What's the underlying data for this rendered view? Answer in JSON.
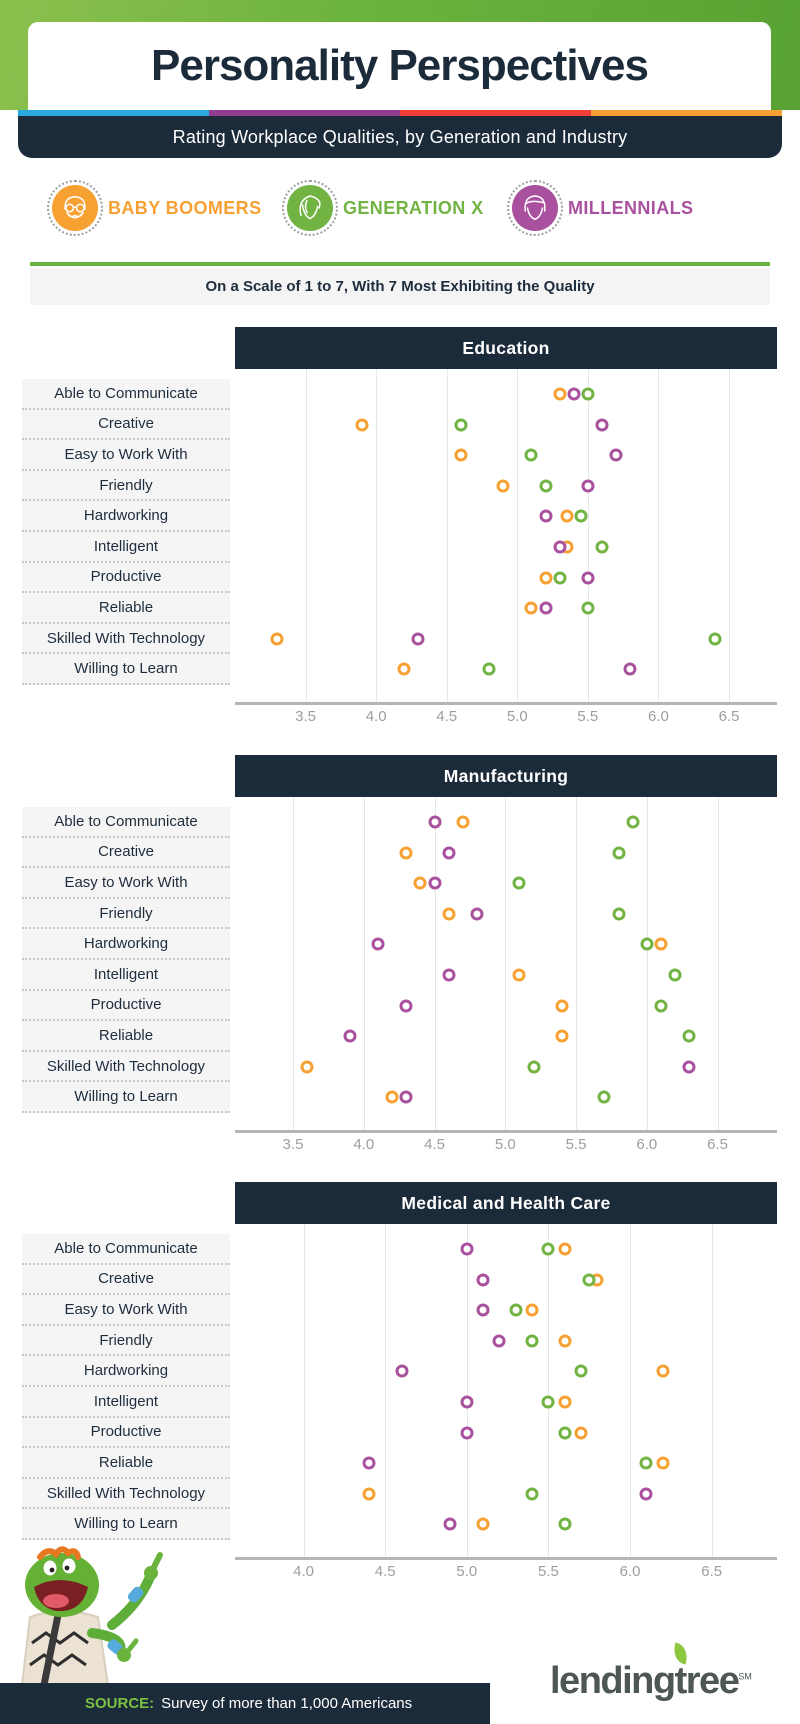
{
  "header": {
    "title": "Personality Perspectives",
    "subtitle": "Rating Workplace Qualities, by Generation and Industry"
  },
  "stripe_colors": [
    "#29abe2",
    "#8e3d90",
    "#ee4036",
    "#f7a133"
  ],
  "brand_colors": {
    "navy": "#1c2b3a",
    "green": "#6cb33f"
  },
  "legend": [
    {
      "label": "BABY BOOMERS",
      "color": "#F7A133",
      "icon": "older-man-avatar"
    },
    {
      "label": "GENERATION X",
      "color": "#72B444",
      "icon": "woman-avatar"
    },
    {
      "label": "MILLENNIALS",
      "color": "#A9519F",
      "icon": "young-man-avatar"
    }
  ],
  "scale_note": "On a Scale of 1 to 7, With 7 Most Exhibiting the Quality",
  "chart_data": [
    {
      "type": "scatter",
      "title": "Education",
      "categories": [
        "Able to Communicate",
        "Creative",
        "Easy to Work With",
        "Friendly",
        "Hardworking",
        "Intelligent",
        "Productive",
        "Reliable",
        "Skilled With Technology",
        "Willing to Learn"
      ],
      "ticks": [
        "3.5",
        "4.0",
        "4.5",
        "5.0",
        "5.5",
        "6.0",
        "6.5"
      ],
      "xlim": [
        3.0,
        6.84
      ],
      "series": [
        {
          "name": "Baby Boomers",
          "color": "#F7A133",
          "values": [
            5.3,
            3.9,
            4.6,
            4.9,
            5.35,
            5.35,
            5.2,
            5.1,
            3.3,
            4.2
          ]
        },
        {
          "name": "Generation X",
          "color": "#72B444",
          "values": [
            5.5,
            4.6,
            5.1,
            5.2,
            5.45,
            5.6,
            5.3,
            5.5,
            6.4,
            4.8
          ]
        },
        {
          "name": "Millennials",
          "color": "#A9519F",
          "values": [
            5.4,
            5.6,
            5.7,
            5.5,
            5.2,
            5.3,
            5.5,
            5.2,
            4.3,
            5.8
          ]
        }
      ]
    },
    {
      "type": "scatter",
      "title": "Manufacturing",
      "categories": [
        "Able to Communicate",
        "Creative",
        "Easy to Work With",
        "Friendly",
        "Hardworking",
        "Intelligent",
        "Productive",
        "Reliable",
        "Skilled With Technology",
        "Willing to Learn"
      ],
      "ticks": [
        "3.5",
        "4.0",
        "4.5",
        "5.0",
        "5.5",
        "6.0",
        "6.5"
      ],
      "xlim": [
        3.09,
        6.92
      ],
      "series": [
        {
          "name": "Baby Boomers",
          "color": "#F7A133",
          "values": [
            4.7,
            4.3,
            4.4,
            4.6,
            6.1,
            5.1,
            5.4,
            5.4,
            3.6,
            4.2
          ]
        },
        {
          "name": "Generation X",
          "color": "#72B444",
          "values": [
            5.9,
            5.8,
            5.1,
            5.8,
            6.0,
            6.2,
            6.1,
            6.3,
            5.2,
            5.7
          ]
        },
        {
          "name": "Millennials",
          "color": "#A9519F",
          "values": [
            4.5,
            4.6,
            4.5,
            4.8,
            4.1,
            4.6,
            4.3,
            3.9,
            6.3,
            4.3
          ]
        }
      ]
    },
    {
      "type": "scatter",
      "title": "Medical and Health Care",
      "categories": [
        "Able to Communicate",
        "Creative",
        "Easy to Work With",
        "Friendly",
        "Hardworking",
        "Intelligent",
        "Productive",
        "Reliable",
        "Skilled With Technology",
        "Willing to Learn"
      ],
      "ticks": [
        "4.0",
        "4.5",
        "5.0",
        "5.5",
        "6.0",
        "6.5"
      ],
      "xlim": [
        3.58,
        6.9
      ],
      "series": [
        {
          "name": "Baby Boomers",
          "color": "#F7A133",
          "values": [
            5.6,
            5.8,
            5.4,
            5.6,
            6.2,
            5.6,
            5.7,
            6.2,
            4.4,
            5.1
          ]
        },
        {
          "name": "Generation X",
          "color": "#72B444",
          "values": [
            5.5,
            5.75,
            5.3,
            5.4,
            5.7,
            5.5,
            5.6,
            6.1,
            5.4,
            5.6
          ]
        },
        {
          "name": "Millennials",
          "color": "#A9519F",
          "values": [
            5.0,
            5.1,
            5.1,
            5.2,
            4.6,
            5.0,
            5.0,
            4.4,
            6.1,
            4.9
          ]
        }
      ]
    }
  ],
  "footer": {
    "source_label": "SOURCE:",
    "source_text": "Survey of more than 1,000 Americans",
    "logo_part1": "lending",
    "logo_part2": "t",
    "logo_part3": "ree",
    "logo_mark": "SM"
  }
}
